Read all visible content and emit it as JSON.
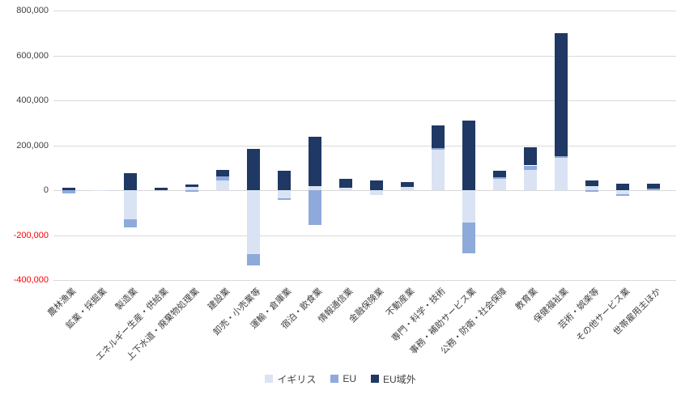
{
  "chart_data": {
    "type": "bar",
    "stacked": true,
    "title": "",
    "xlabel": "",
    "ylabel": "",
    "categories": [
      "農林漁業",
      "鉱業・採掘業",
      "製造業",
      "エネルギー生産・供給業",
      "上下水道・廃棄物処理業",
      "建設業",
      "卸売・小売業等",
      "運輸・倉庫業",
      "宿泊・飲食業",
      "情報通信業",
      "金融保険業",
      "不動産業",
      "専門・科学・技術",
      "事務・補助サービス業",
      "公務・防衛・社会保障",
      "教育業",
      "保健福祉業",
      "芸術・娯楽等",
      "その他サービス業",
      "世帯雇用主ほか"
    ],
    "series": [
      {
        "name": "イギリス",
        "color": "#dae3f3",
        "values": [
          0,
          -5000,
          -130000,
          0,
          15000,
          45000,
          -285000,
          -37000,
          18000,
          12000,
          -20000,
          15000,
          180000,
          -145000,
          50000,
          90000,
          145000,
          18000,
          -18000,
          0
        ]
      },
      {
        "name": "EU",
        "color": "#8eaadb",
        "values": [
          -15000,
          0,
          -36000,
          0,
          -7000,
          15000,
          -49000,
          -7000,
          -155000,
          0,
          0,
          0,
          7000,
          -137000,
          8000,
          20000,
          7000,
          -8000,
          -7000,
          8000
        ]
      },
      {
        "name": "EU域外",
        "color": "#1f3864",
        "values": [
          12000,
          0,
          75000,
          10000,
          10000,
          31000,
          185000,
          85000,
          220000,
          38000,
          42000,
          20000,
          100000,
          310000,
          30000,
          80000,
          548000,
          25000,
          28000,
          20000
        ]
      }
    ],
    "yticks": [
      800000,
      600000,
      400000,
      200000,
      0,
      -200000,
      -400000
    ],
    "ylim": [
      -400000,
      800000
    ],
    "grid": true,
    "legend_position": "bottom",
    "colors": {
      "tick_text": "#404040",
      "negative_tick_text": "#ff0000",
      "gridline": "#d9d9d9",
      "background": "#ffffff"
    }
  }
}
